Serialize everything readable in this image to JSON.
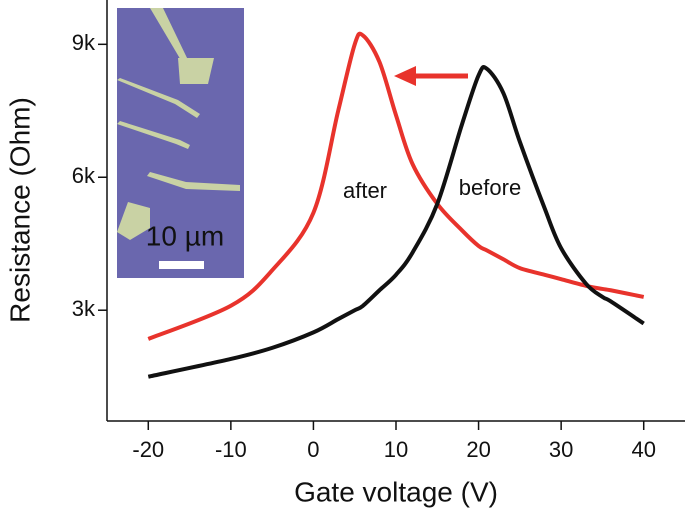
{
  "chart_data": {
    "type": "line",
    "xlabel": "Gate voltage (V)",
    "ylabel": "Resistance (Ohm)",
    "x": [
      -20,
      -10,
      -5,
      0,
      3,
      5,
      6,
      8,
      10,
      12,
      15,
      18,
      20,
      21,
      23,
      25,
      28,
      30,
      33,
      35,
      36,
      40
    ],
    "series": [
      {
        "color": "#e8332c",
        "values": [
          2350,
          3100,
          3900,
          5200,
          7500,
          9000,
          9200,
          8600,
          7400,
          6300,
          5400,
          4800,
          4450,
          4350,
          4150,
          3950,
          3800,
          3700,
          3550,
          3480,
          3450,
          3300
        ]
      },
      {
        "color": "#111111",
        "values": [
          1500,
          1900,
          2150,
          2500,
          2800,
          3000,
          3100,
          3450,
          3800,
          4300,
          5400,
          7200,
          8300,
          8450,
          7900,
          6800,
          5300,
          4400,
          3600,
          3300,
          3200,
          2700
        ]
      }
    ],
    "annotations": [
      "after",
      "before",
      "10 µm"
    ],
    "xlim": [
      -25,
      45
    ],
    "ylim": [
      500,
      10000
    ],
    "xticks": [
      -20,
      -10,
      0,
      10,
      20,
      30,
      40
    ],
    "yticks": [
      {
        "value": 3000,
        "label": "3k"
      },
      {
        "value": 6000,
        "label": "6k"
      },
      {
        "value": 9000,
        "label": "9k"
      }
    ]
  }
}
